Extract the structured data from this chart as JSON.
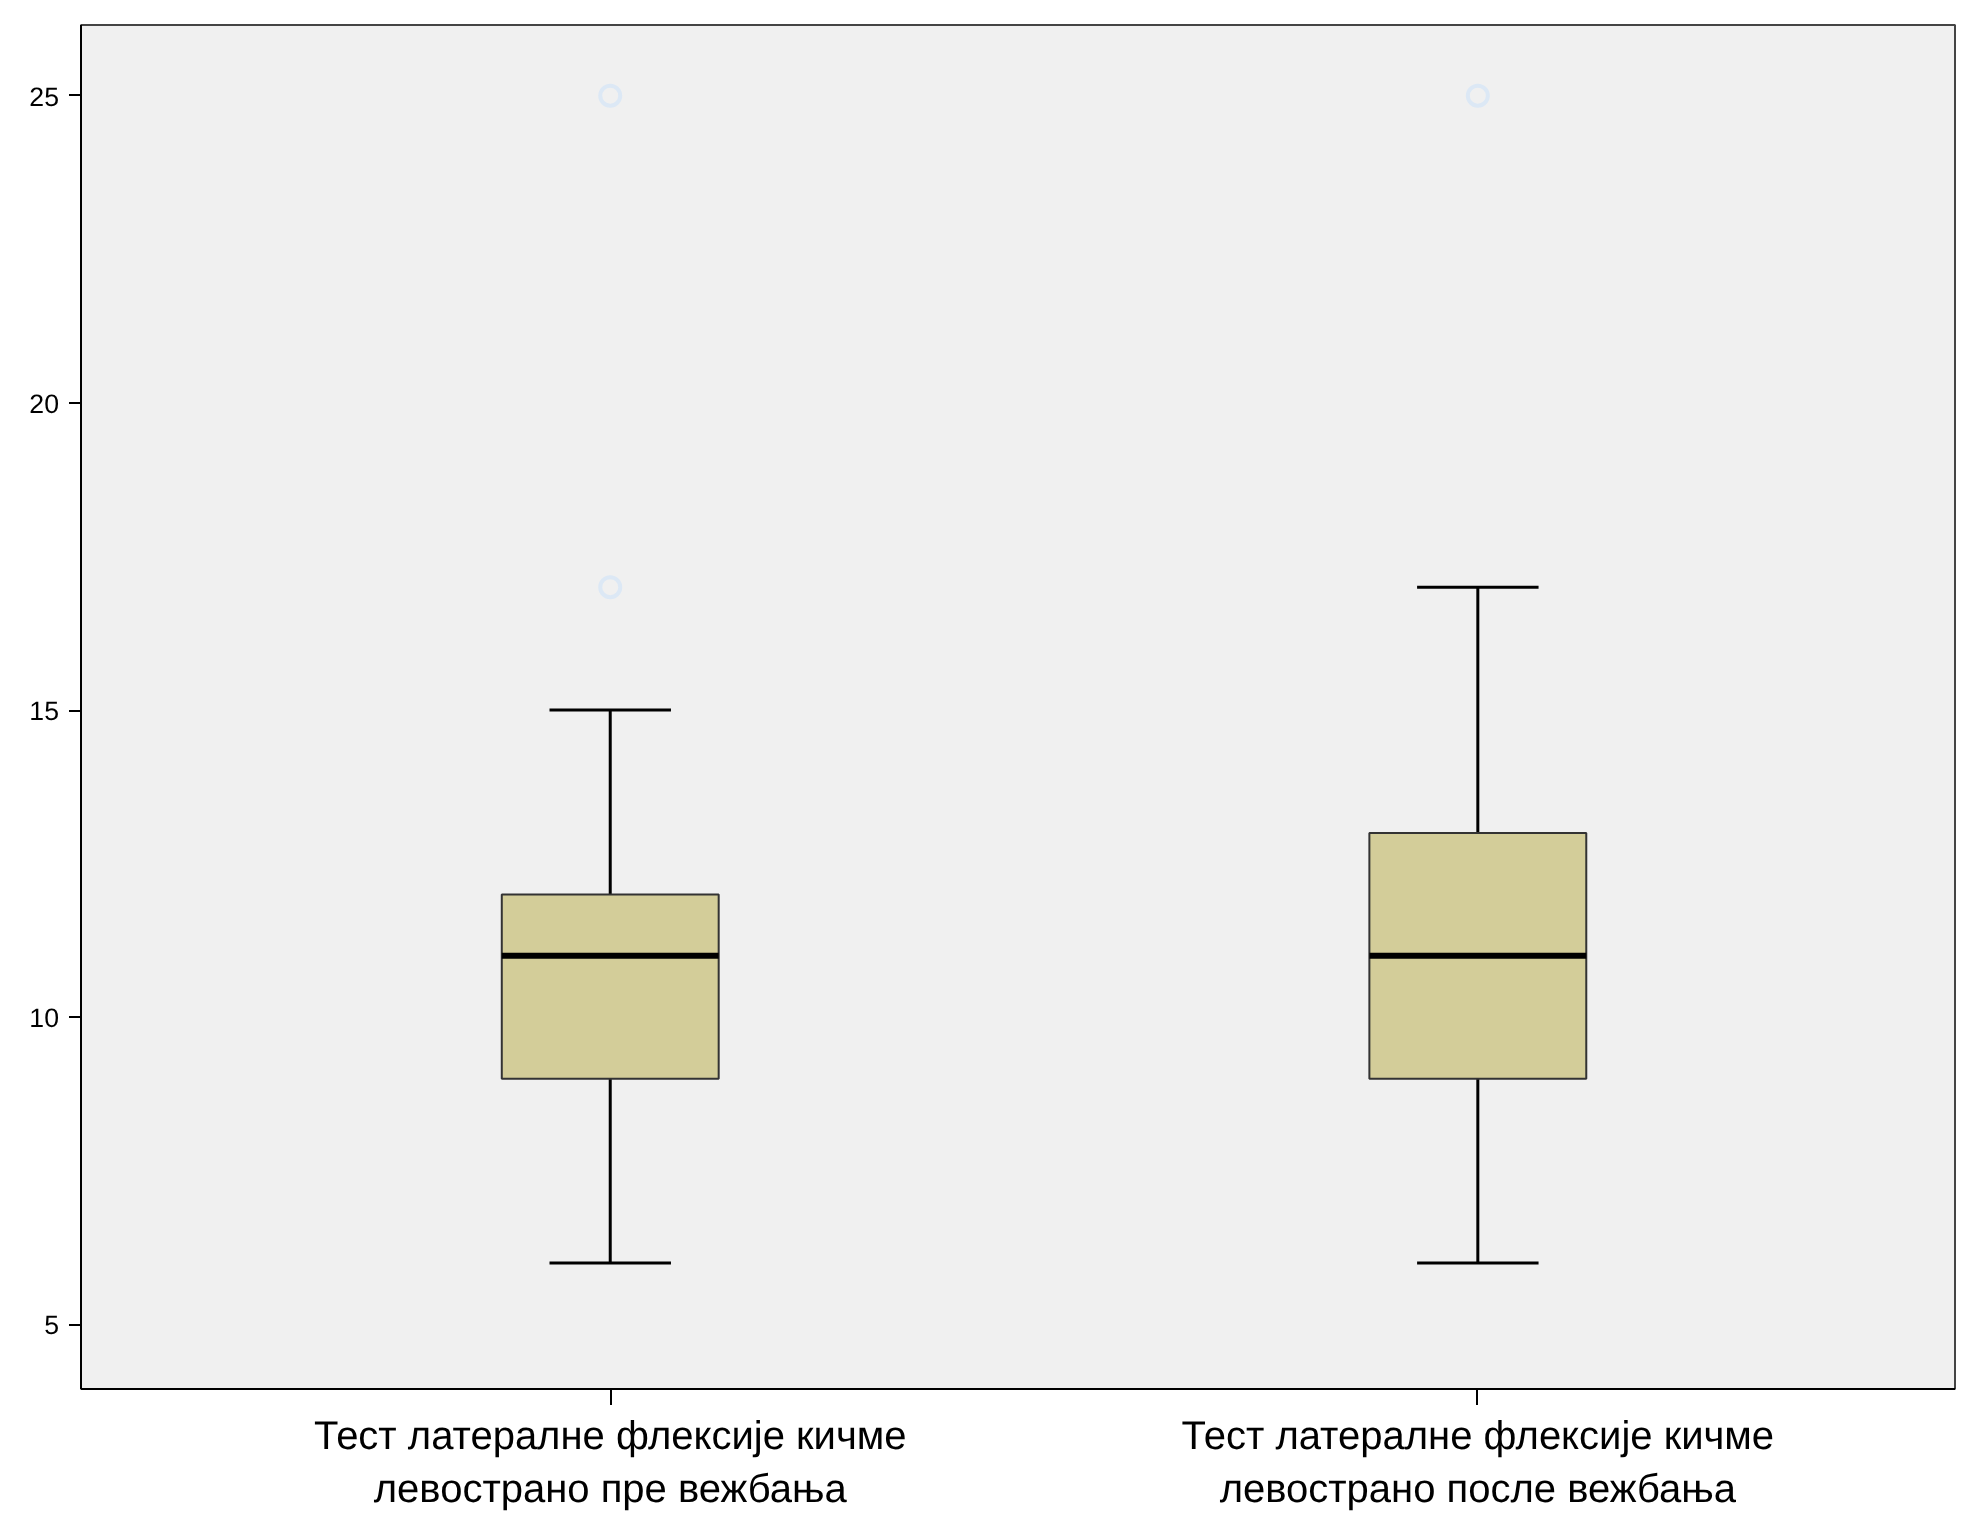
{
  "chart_data": {
    "type": "box",
    "categories": [
      "Тест латералне флексије кичме\nлевострано пре вежбања",
      "Тест латералне флексије кичме\nлевострано после вежбања"
    ],
    "boxes": [
      {
        "low": 6,
        "q1": 9,
        "median": 11,
        "q3": 12,
        "high": 15,
        "outliers": [
          17,
          25
        ]
      },
      {
        "low": 6,
        "q1": 9,
        "median": 11,
        "q3": 13,
        "high": 17,
        "outliers": [
          25
        ]
      }
    ],
    "color": "#d3cd99",
    "ylim": [
      3.95,
      26.15
    ],
    "yticks": [
      5,
      10,
      15,
      20,
      25
    ],
    "grid": false,
    "marker": "circle"
  }
}
